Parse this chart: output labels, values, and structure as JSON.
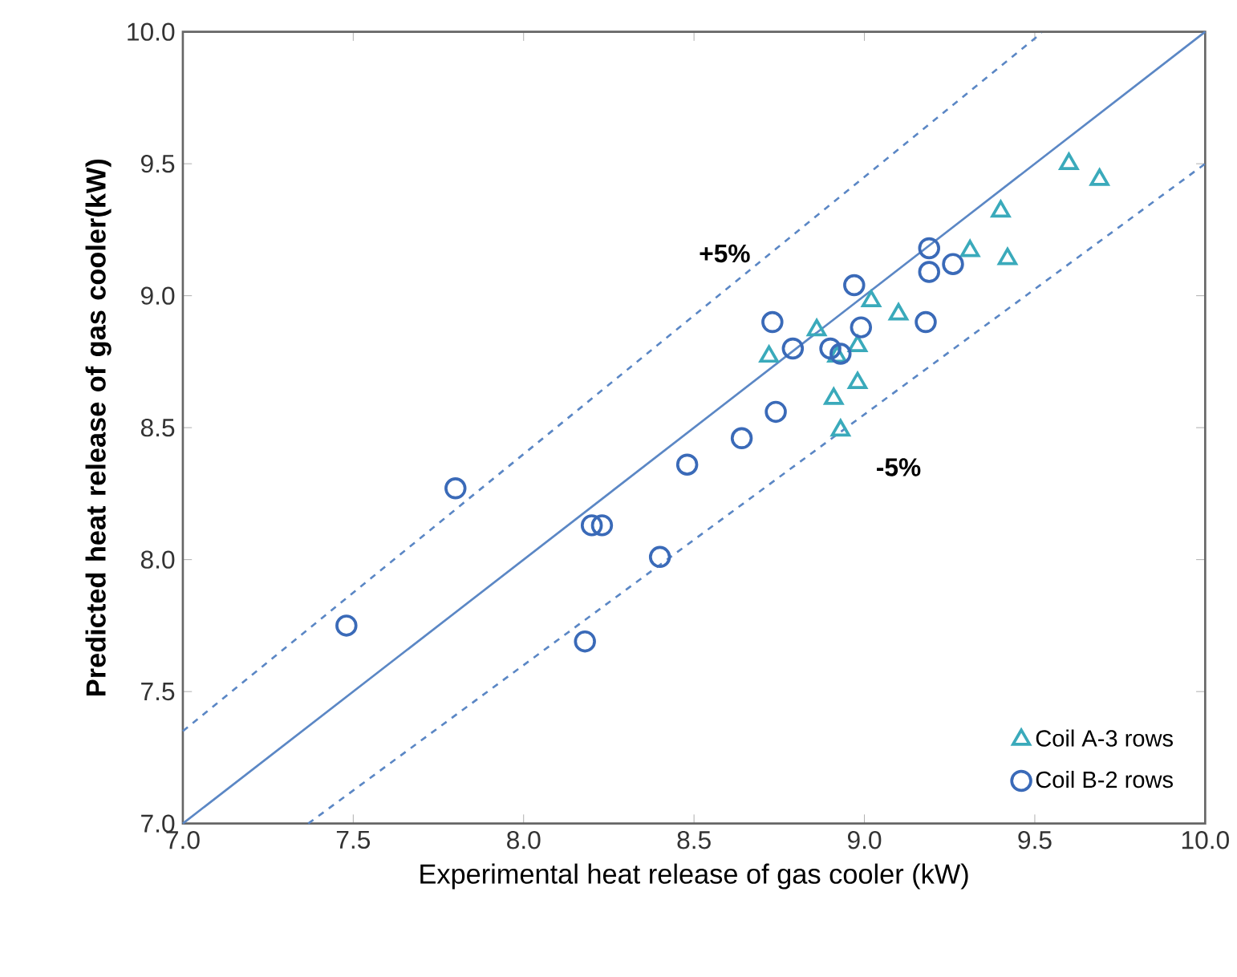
{
  "chart_data": {
    "type": "scatter",
    "xlabel": "Experimental heat release of gas cooler (kW)",
    "ylabel": "Predicted heat release of gas cooler(kW)",
    "xlim": [
      7.0,
      10.0
    ],
    "ylim": [
      7.0,
      10.0
    ],
    "xticks": [
      {
        "value": 7.0,
        "label": "7.0"
      },
      {
        "value": 7.5,
        "label": "7.5"
      },
      {
        "value": 8.0,
        "label": "8.0"
      },
      {
        "value": 8.5,
        "label": "8.5"
      },
      {
        "value": 9.0,
        "label": "9.0"
      },
      {
        "value": 9.5,
        "label": "9.5"
      },
      {
        "value": 10.0,
        "label": "10.0"
      }
    ],
    "yticks": [
      {
        "value": 7.0,
        "label": "7.0"
      },
      {
        "value": 7.5,
        "label": "7.5"
      },
      {
        "value": 8.0,
        "label": "8.0"
      },
      {
        "value": 8.5,
        "label": "8.5"
      },
      {
        "value": 9.0,
        "label": "9.0"
      },
      {
        "value": 9.5,
        "label": "9.5"
      },
      {
        "value": 10.0,
        "label": "10.0"
      }
    ],
    "grid": false,
    "legend": "bottom right",
    "series": [
      {
        "name": "Coil A-3 rows",
        "color": "#3aaabb",
        "marker": "triangle",
        "x": [
          9.6,
          9.69,
          9.4,
          9.42,
          9.31,
          9.1,
          9.02,
          8.86,
          8.72,
          8.98,
          8.92,
          8.91,
          8.98,
          8.93
        ],
        "values": [
          9.5,
          9.44,
          9.32,
          9.14,
          9.17,
          8.93,
          8.98,
          8.87,
          8.77,
          8.81,
          8.77,
          8.61,
          8.67,
          8.49
        ]
      },
      {
        "name": "Coil B-2 rows",
        "color": "#3a6ab8",
        "marker": "circle",
        "x": [
          7.48,
          7.8,
          8.18,
          8.2,
          8.23,
          8.4,
          8.48,
          8.64,
          8.74,
          8.73,
          8.79,
          8.9,
          8.93,
          8.97,
          8.99,
          9.18,
          9.19,
          9.19,
          9.26
        ],
        "values": [
          7.75,
          8.27,
          7.69,
          8.13,
          8.13,
          8.01,
          8.36,
          8.46,
          8.56,
          8.9,
          8.8,
          8.8,
          8.78,
          9.04,
          8.88,
          8.9,
          9.18,
          9.09,
          9.12
        ]
      },
      {
        "type": "line",
        "color": "#5b87c5",
        "line_style": "solid",
        "marker": "none",
        "x": [
          7.0,
          10.0
        ],
        "values": [
          7.0,
          10.0
        ]
      },
      {
        "type": "line",
        "color": "#5b87c5",
        "line_style": "dashed",
        "marker": "none",
        "x": [
          7.0,
          9.52
        ],
        "values": [
          7.35,
          9.996
        ]
      },
      {
        "type": "line",
        "color": "#5b87c5",
        "line_style": "dashed",
        "marker": "none",
        "x": [
          7.368,
          10.0
        ],
        "values": [
          7.0,
          9.5
        ]
      }
    ],
    "annotations": [
      "+5%",
      "-5%"
    ]
  }
}
